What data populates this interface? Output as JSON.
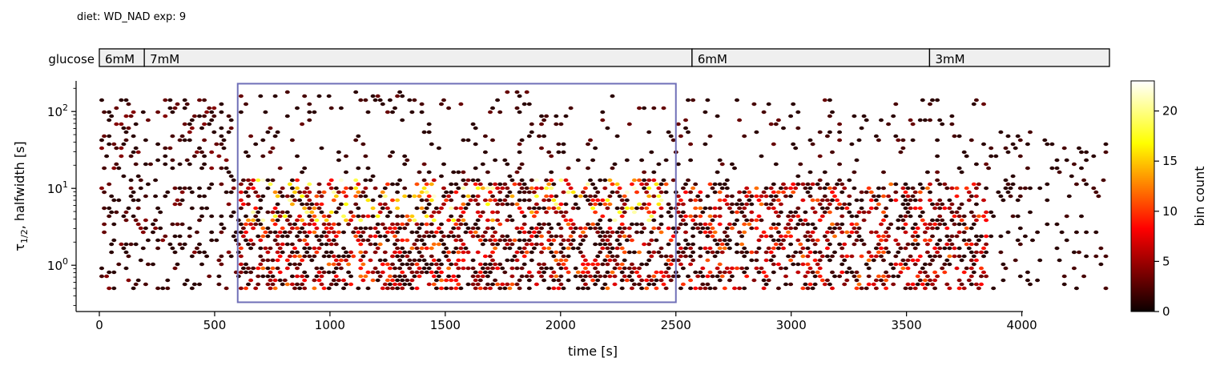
{
  "header": {
    "subtitle": "diet: WD_NAD  exp: 9"
  },
  "protocol": {
    "label": "glucose",
    "segments": [
      {
        "label": "6mM",
        "start": 0,
        "end": 195
      },
      {
        "label": "7mM",
        "start": 195,
        "end": 2570
      },
      {
        "label": "6mM",
        "start": 2570,
        "end": 3600
      },
      {
        "label": "3mM",
        "start": 3600,
        "end": 4380
      }
    ]
  },
  "chart_data": {
    "type": "heatmap",
    "subtype": "hexbin",
    "xlabel": "time [s]",
    "ylabel_main": "τ",
    "ylabel_sub": "1/2",
    "ylabel_rest": ", halfwidth [s]",
    "xlim": [
      0,
      4380
    ],
    "ylim": [
      0.25,
      250
    ],
    "yscale": "log",
    "x_ticks": [
      0,
      500,
      1000,
      1500,
      2000,
      2500,
      3000,
      3500,
      4000
    ],
    "y_ticks": [
      {
        "value": 1,
        "label_base": "10",
        "label_exp": "0"
      },
      {
        "value": 10,
        "label_base": "10",
        "label_exp": "1"
      },
      {
        "value": 100,
        "label_base": "10",
        "label_exp": "2"
      }
    ],
    "highlight_box": {
      "x0": 600,
      "x1": 2500,
      "y0": 0.33,
      "y1": 230
    },
    "colorbar": {
      "label": "bin count",
      "min": 0,
      "max": 23,
      "ticks": [
        0,
        5,
        10,
        15,
        20
      ],
      "colormap": "hot"
    },
    "density_regions": [
      {
        "x0": 0,
        "x1": 600,
        "y0": 0.5,
        "y1": 150,
        "density": 0.35,
        "max_count": 4
      },
      {
        "x0": 600,
        "x1": 2500,
        "y0": 0.5,
        "y1": 3.5,
        "density": 0.92,
        "max_count": 12
      },
      {
        "x0": 600,
        "x1": 2500,
        "y0": 3.5,
        "y1": 14,
        "density": 0.85,
        "max_count": 22
      },
      {
        "x0": 600,
        "x1": 2500,
        "y0": 14,
        "y1": 180,
        "density": 0.18,
        "max_count": 3
      },
      {
        "x0": 2500,
        "x1": 3850,
        "y0": 0.5,
        "y1": 12,
        "density": 0.8,
        "max_count": 12
      },
      {
        "x0": 2500,
        "x1": 3850,
        "y0": 12,
        "y1": 150,
        "density": 0.15,
        "max_count": 3
      },
      {
        "x0": 3850,
        "x1": 4380,
        "y0": 0.5,
        "y1": 60,
        "density": 0.2,
        "max_count": 2
      }
    ]
  }
}
